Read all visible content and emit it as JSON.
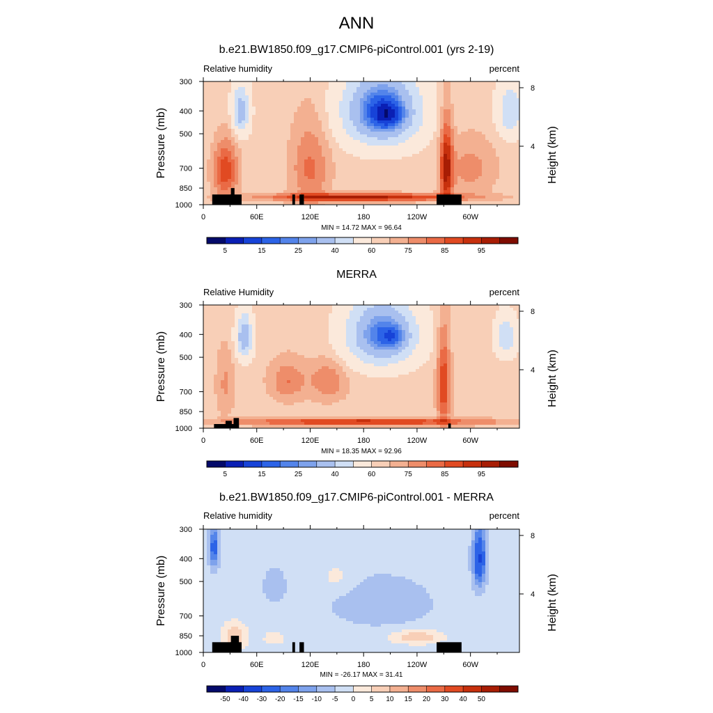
{
  "figure": {
    "title": "ANN"
  },
  "chart_data": [
    {
      "type": "heatmap",
      "title": "b.e21.BW1850.f09_g17.CMIP6-piControl.001 (yrs 2-19)",
      "variable_label": "Relative humidity",
      "units_label": "percent",
      "ylabel": "Pressure (mb)",
      "y2label": "Height (km)",
      "x_ticklabels": [
        "0",
        "60E",
        "120E",
        "180",
        "120W",
        "60W"
      ],
      "x_tick_lon": [
        0,
        60,
        120,
        180,
        240,
        300
      ],
      "xlim": [
        0,
        355
      ],
      "y_ticklabels": [
        "300",
        "400",
        "500",
        "700",
        "850",
        "1000"
      ],
      "y_ticks": [
        300,
        400,
        500,
        700,
        850,
        1000
      ],
      "ylim": [
        1000,
        300
      ],
      "y_scale": "log",
      "y2_ticklabels": [
        "8",
        "4"
      ],
      "y2_ticks_km": [
        8,
        4
      ],
      "min": "14.72",
      "max": "96.64",
      "minmax_text": "MIN =  14.72  MAX =  96.64",
      "colorbar_ticklabels": [
        "5",
        "15",
        "25",
        "40",
        "60",
        "75",
        "85",
        "95"
      ],
      "levels": [
        0,
        5,
        10,
        15,
        20,
        25,
        30,
        40,
        50,
        60,
        65,
        70,
        75,
        80,
        85,
        90,
        95,
        100
      ],
      "field": {
        "base": 62,
        "features": [
          {
            "lon": 200,
            "p": 400,
            "w": 40,
            "h": 140,
            "amp": -48
          },
          {
            "lon": 210,
            "p": 420,
            "w": 18,
            "h": 60,
            "amp": -12
          },
          {
            "lon": 42,
            "p": 400,
            "w": 9,
            "h": 90,
            "amp": -30
          },
          {
            "lon": 345,
            "p": 400,
            "w": 14,
            "h": 100,
            "amp": -22
          },
          {
            "lon": 25,
            "p": 720,
            "w": 14,
            "h": 200,
            "amp": 22
          },
          {
            "lon": 120,
            "p": 700,
            "w": 22,
            "h": 300,
            "amp": 14
          },
          {
            "lon": 273,
            "p": 700,
            "w": 7,
            "h": 300,
            "amp": 28
          },
          {
            "lon": 180,
            "p": 930,
            "w": 110,
            "h": 35,
            "amp": 30
          },
          {
            "lon": 300,
            "p": 700,
            "w": 30,
            "h": 200,
            "amp": 10
          }
        ]
      },
      "topography": [
        [
          10,
          32,
          905
        ],
        [
          30,
          43,
          905
        ],
        [
          31,
          35,
          850
        ],
        [
          100,
          103,
          905
        ],
        [
          108,
          113,
          905
        ],
        [
          262,
          290,
          905
        ]
      ]
    },
    {
      "type": "heatmap",
      "title": "MERRA",
      "variable_label": "Relative Humidity",
      "units_label": "percent",
      "ylabel": "Pressure (mb)",
      "y2label": "Height (km)",
      "x_ticklabels": [
        "0",
        "60E",
        "120E",
        "180",
        "120W",
        "60W"
      ],
      "x_tick_lon": [
        0,
        60,
        120,
        180,
        240,
        300
      ],
      "xlim": [
        0,
        355
      ],
      "y_ticklabels": [
        "300",
        "400",
        "500",
        "700",
        "850",
        "1000"
      ],
      "y_ticks": [
        300,
        400,
        500,
        700,
        850,
        1000
      ],
      "ylim": [
        1000,
        300
      ],
      "y_scale": "log",
      "y2_ticklabels": [
        "8",
        "4"
      ],
      "y2_ticks_km": [
        8,
        4
      ],
      "min": "18.35",
      "max": "92.96",
      "minmax_text": "MIN =  18.35  MAX =  92.96",
      "colorbar_ticklabels": [
        "5",
        "15",
        "25",
        "40",
        "60",
        "75",
        "85",
        "95"
      ],
      "levels": [
        0,
        5,
        10,
        15,
        20,
        25,
        30,
        40,
        50,
        60,
        65,
        70,
        75,
        80,
        85,
        90,
        95,
        100
      ],
      "field": {
        "base": 63,
        "features": [
          {
            "lon": 200,
            "p": 400,
            "w": 38,
            "h": 130,
            "amp": -42
          },
          {
            "lon": 215,
            "p": 410,
            "w": 16,
            "h": 50,
            "amp": -12
          },
          {
            "lon": 46,
            "p": 410,
            "w": 9,
            "h": 90,
            "amp": -32
          },
          {
            "lon": 340,
            "p": 410,
            "w": 12,
            "h": 80,
            "amp": -22
          },
          {
            "lon": 95,
            "p": 630,
            "w": 20,
            "h": 120,
            "amp": 12
          },
          {
            "lon": 140,
            "p": 630,
            "w": 20,
            "h": 120,
            "amp": 12
          },
          {
            "lon": 270,
            "p": 650,
            "w": 7,
            "h": 300,
            "amp": 22
          },
          {
            "lon": 180,
            "p": 940,
            "w": 140,
            "h": 30,
            "amp": 26
          },
          {
            "lon": 25,
            "p": 650,
            "w": 10,
            "h": 200,
            "amp": 8
          }
        ]
      },
      "topography": [
        [
          12,
          40,
          960
        ],
        [
          25,
          32,
          930
        ],
        [
          34,
          40,
          905
        ],
        [
          275,
          278,
          955
        ]
      ]
    },
    {
      "type": "heatmap",
      "title": "b.e21.BW1850.f09_g17.CMIP6-piControl.001 - MERRA",
      "variable_label": "Relative humidity",
      "units_label": "percent",
      "ylabel": "Pressure (mb)",
      "y2label": "Height (km)",
      "x_ticklabels": [
        "0",
        "60E",
        "120E",
        "180",
        "120W",
        "60W"
      ],
      "x_tick_lon": [
        0,
        60,
        120,
        180,
        240,
        300
      ],
      "xlim": [
        0,
        355
      ],
      "y_ticklabels": [
        "300",
        "400",
        "500",
        "700",
        "850",
        "1000"
      ],
      "y_ticks": [
        300,
        400,
        500,
        700,
        850,
        1000
      ],
      "ylim": [
        1000,
        300
      ],
      "y_scale": "log",
      "y2_ticklabels": [
        "8",
        "4"
      ],
      "y2_ticks_km": [
        8,
        4
      ],
      "min": "-26.17",
      "max": "31.41",
      "minmax_text": "MIN = -26.17  MAX =  31.41",
      "colorbar_ticklabels": [
        "-50",
        "-40",
        "-30",
        "-20",
        "-15",
        "-10",
        "-5",
        "0",
        "5",
        "10",
        "15",
        "20",
        "30",
        "40",
        "50"
      ],
      "levels": [
        -60,
        -50,
        -40,
        -30,
        -20,
        -15,
        -10,
        -5,
        0,
        5,
        10,
        15,
        20,
        30,
        40,
        50,
        60
      ],
      "field": {
        "base": -3,
        "features": [
          {
            "lon": 12,
            "p": 360,
            "w": 5,
            "h": 70,
            "amp": -22
          },
          {
            "lon": 310,
            "p": 400,
            "w": 7,
            "h": 110,
            "amp": -28
          },
          {
            "lon": 200,
            "p": 620,
            "w": 60,
            "h": 160,
            "amp": -5
          },
          {
            "lon": 80,
            "p": 520,
            "w": 12,
            "h": 80,
            "amp": -6
          },
          {
            "lon": 35,
            "p": 860,
            "w": 14,
            "h": 120,
            "amp": 12
          },
          {
            "lon": 240,
            "p": 860,
            "w": 30,
            "h": 60,
            "amp": 12
          },
          {
            "lon": 150,
            "p": 480,
            "w": 20,
            "h": 70,
            "amp": 5
          },
          {
            "lon": 80,
            "p": 870,
            "w": 12,
            "h": 50,
            "amp": 8
          }
        ]
      },
      "topography": [
        [
          10,
          32,
          905
        ],
        [
          30,
          43,
          905
        ],
        [
          31,
          40,
          850
        ],
        [
          100,
          103,
          905
        ],
        [
          108,
          113,
          905
        ],
        [
          262,
          290,
          905
        ]
      ]
    }
  ]
}
